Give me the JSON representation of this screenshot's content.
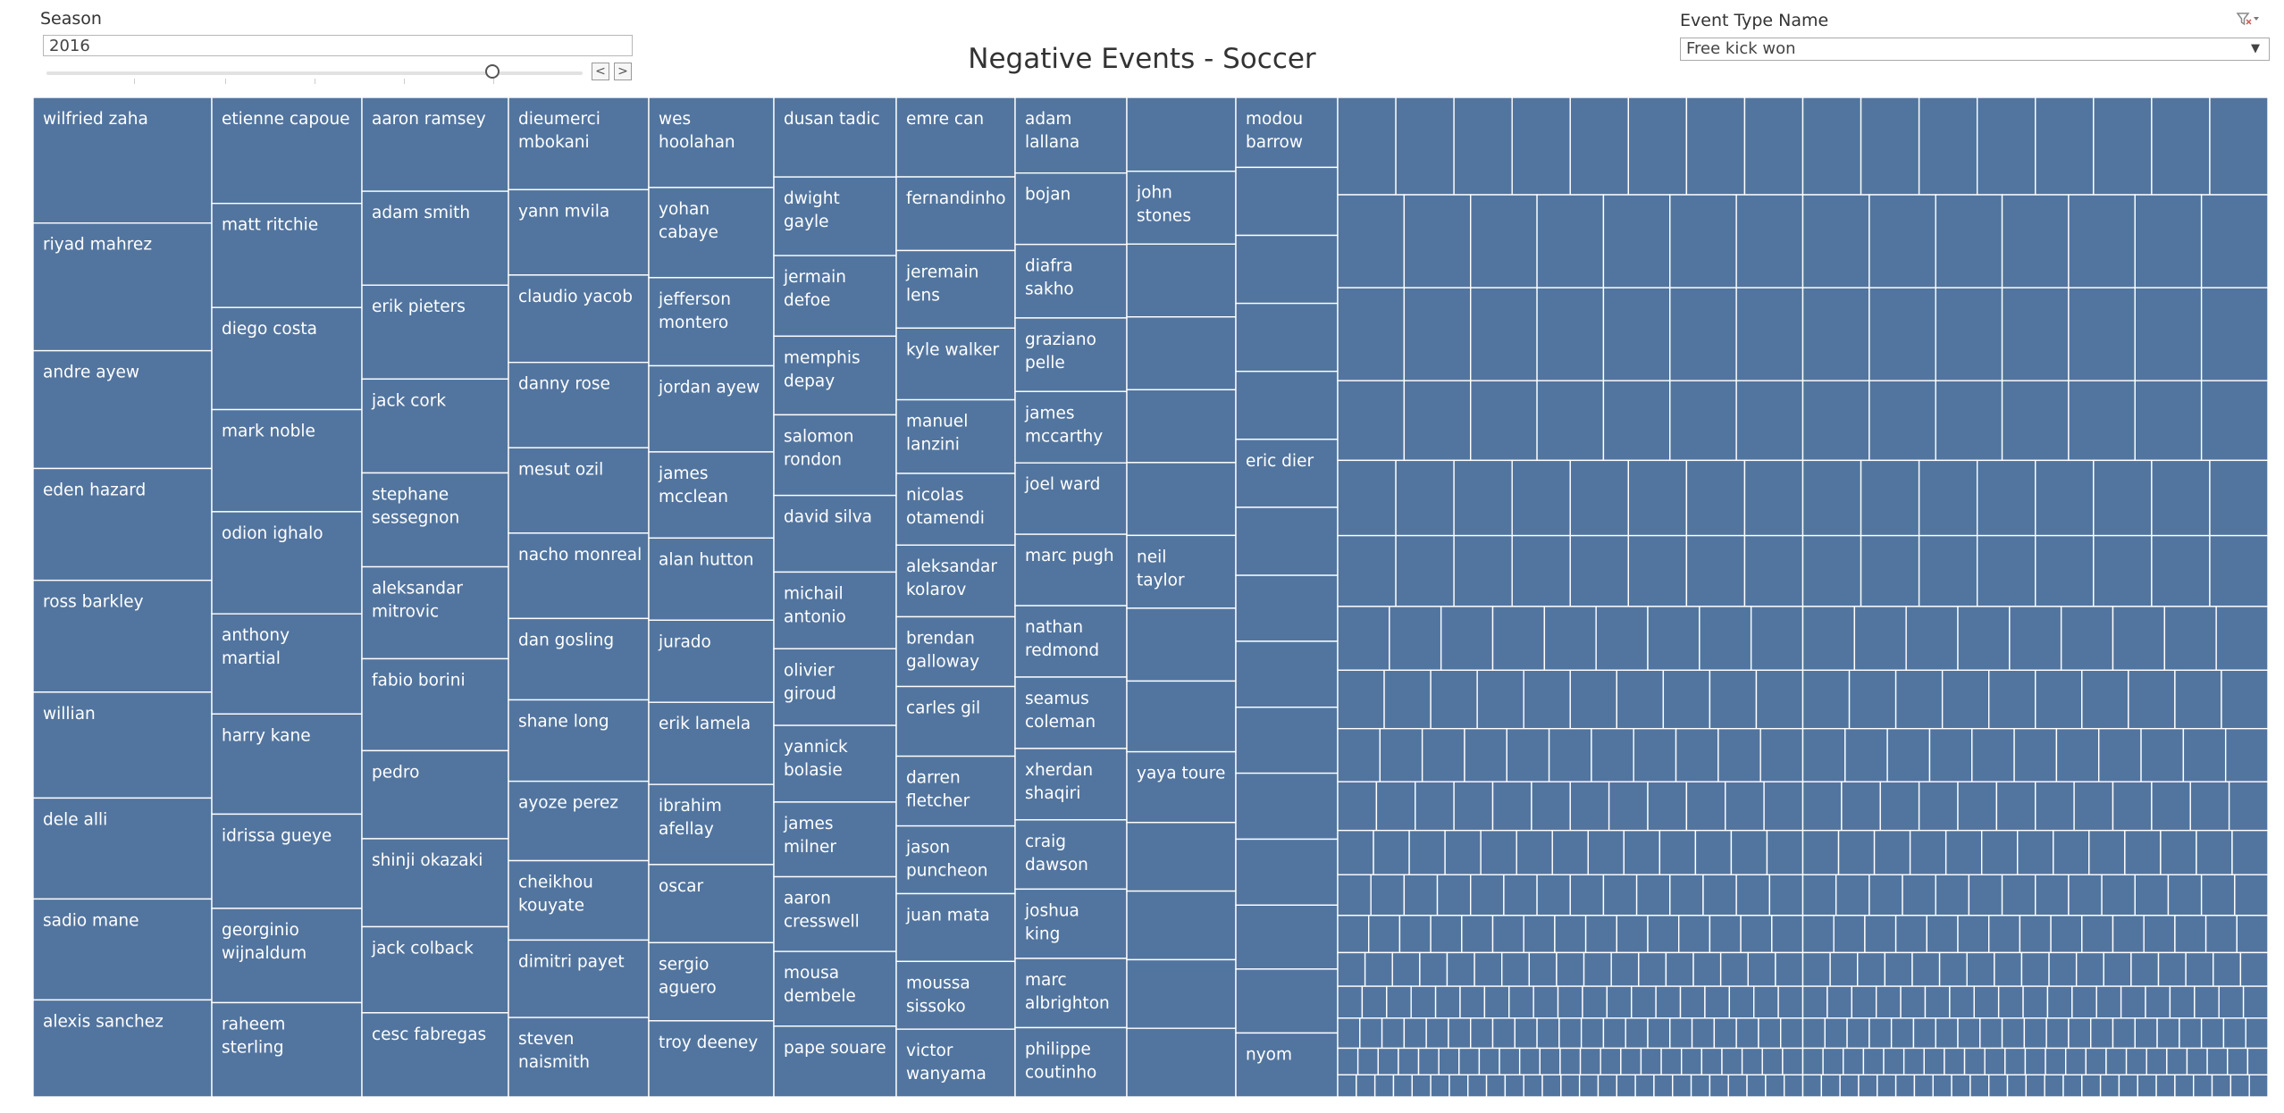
{
  "filters": {
    "season_label": "Season",
    "season_value": "2016",
    "prev_label": "<",
    "next_label": ">",
    "event_type_label": "Event Type Name",
    "event_type_value": "Free kick won",
    "filter_icon": "clear-filter-icon",
    "dropdown_icon": "chevron-down-icon"
  },
  "chart_data": {
    "type": "treemap",
    "title": "Negative Events - Soccer",
    "color": "#52759f",
    "columns": [
      {
        "items": [
          [
            "wilfried zaha",
            12.7
          ],
          [
            "riyad mahrez",
            12.9
          ],
          [
            "andre ayew",
            11.9
          ],
          [
            "eden hazard",
            11.3
          ],
          [
            "ross barkley",
            11.3
          ],
          [
            "willian",
            10.7
          ],
          [
            "dele alli",
            10.2
          ],
          [
            "sadio mane",
            10.2
          ],
          [
            "alexis sanchez",
            9.8
          ]
        ]
      },
      {
        "items": [
          [
            "etienne capoue",
            10.8
          ],
          [
            "matt ritchie",
            10.6
          ],
          [
            "diego costa",
            10.4
          ],
          [
            "mark noble",
            10.4
          ],
          [
            "odion ighalo",
            10.4
          ],
          [
            "anthony martial",
            10.2
          ],
          [
            "harry kane",
            10.2
          ],
          [
            "idrissa gueye",
            9.6
          ],
          [
            "georginio wijnaldum",
            9.6
          ],
          [
            "raheem sterling",
            9.6
          ]
        ]
      },
      {
        "items": [
          [
            "aaron ramsey",
            9.6
          ],
          [
            "adam smith",
            9.6
          ],
          [
            "erik pieters",
            9.6
          ],
          [
            "jack cork",
            9.6
          ],
          [
            "stephane sessegnon",
            9.6
          ],
          [
            "aleksandar mitrovic",
            9.4
          ],
          [
            "fabio borini",
            9.4
          ],
          [
            "pedro",
            9.0
          ],
          [
            "shinji okazaki",
            9.0
          ],
          [
            "jack colback",
            8.8
          ],
          [
            "cesc fabregas",
            8.6
          ]
        ]
      },
      {
        "items": [
          [
            "dieumerci mbokani",
            9.3
          ],
          [
            "yann mvila",
            8.6
          ],
          [
            "claudio yacob",
            8.8
          ],
          [
            "danny rose",
            8.6
          ],
          [
            "mesut ozil",
            8.6
          ],
          [
            "nacho monreal",
            8.6
          ],
          [
            "dan gosling",
            8.2
          ],
          [
            "shane long",
            8.2
          ],
          [
            "ayoze perez",
            8.0
          ],
          [
            "cheikhou kouyate",
            8.0
          ],
          [
            "dimitri payet",
            7.8
          ],
          [
            "steven naismith",
            8.0
          ]
        ]
      },
      {
        "items": [
          [
            "wes hoolahan",
            9.0
          ],
          [
            "yohan cabaye",
            9.0
          ],
          [
            "jefferson montero",
            8.8
          ],
          [
            "jordan ayew",
            8.6
          ],
          [
            "james mcclean",
            8.6
          ],
          [
            "alan hutton",
            8.2
          ],
          [
            "jurado",
            8.2
          ],
          [
            "erik lamela",
            8.2
          ],
          [
            "ibrahim afellay",
            8.0
          ],
          [
            "oscar",
            7.8
          ],
          [
            "sergio aguero",
            7.8
          ],
          [
            "troy deeney",
            7.6
          ]
        ]
      },
      {
        "items": [
          [
            "dusan tadic",
            8.1
          ],
          [
            "dwight gayle",
            8.0
          ],
          [
            "jermain defoe",
            8.2
          ],
          [
            "memphis depay",
            8.0
          ],
          [
            "salomon rondon",
            8.2
          ],
          [
            "david silva",
            7.8
          ],
          [
            "michail antonio",
            7.8
          ],
          [
            "olivier giroud",
            7.8
          ],
          [
            "yannick bolasie",
            7.8
          ],
          [
            "james milner",
            7.6
          ],
          [
            "aaron cresswell",
            7.6
          ],
          [
            "mousa dembele",
            7.6
          ],
          [
            "pape souare",
            7.2
          ]
        ]
      },
      {
        "items": [
          [
            "emre can",
            8.1
          ],
          [
            "fernandinho",
            7.5
          ],
          [
            "jeremain lens",
            7.9
          ],
          [
            "kyle walker",
            7.3
          ],
          [
            "manuel lanzini",
            7.5
          ],
          [
            "nicolas otamendi",
            7.3
          ],
          [
            "aleksandar kolarov",
            7.3
          ],
          [
            "brendan galloway",
            7.1
          ],
          [
            "carles gil",
            7.1
          ],
          [
            "darren fletcher",
            7.1
          ],
          [
            "jason puncheon",
            6.9
          ],
          [
            "juan mata",
            6.9
          ],
          [
            "moussa sissoko",
            6.9
          ],
          [
            "victor wanyama",
            6.9
          ]
        ]
      },
      {
        "items": [
          [
            "adam lallana",
            7.1
          ],
          [
            "bojan",
            6.7
          ],
          [
            "diafra sakho",
            6.9
          ],
          [
            "graziano pelle",
            6.9
          ],
          [
            "james mccarthy",
            6.7
          ],
          [
            "joel ward",
            6.7
          ],
          [
            "marc pugh",
            6.7
          ],
          [
            "nathan redmond",
            6.7
          ],
          [
            "seamus coleman",
            6.7
          ],
          [
            "xherdan shaqiri",
            6.7
          ],
          [
            "craig dawson",
            6.5
          ],
          [
            "joshua king",
            6.5
          ],
          [
            "marc albrighton",
            6.5
          ],
          [
            "philippe coutinho",
            6.5
          ]
        ]
      },
      {
        "items": [
          [
            "",
            7.0
          ],
          [
            "john stones",
            6.9
          ],
          [
            "",
            6.9
          ],
          [
            "",
            6.9
          ],
          [
            "",
            6.9
          ],
          [
            "",
            6.9
          ],
          [
            "neil taylor",
            6.9
          ],
          [
            "",
            6.9
          ],
          [
            "",
            6.7
          ],
          [
            "yaya toure",
            6.7
          ],
          [
            "",
            6.5
          ],
          [
            "",
            6.5
          ],
          [
            "",
            6.5
          ],
          [
            "",
            6.5
          ]
        ]
      },
      {
        "items": [
          [
            "modou barrow",
            6.9
          ],
          [
            "",
            6.7
          ],
          [
            "",
            6.7
          ],
          [
            "",
            6.7
          ],
          [
            "",
            6.7
          ],
          [
            "eric dier",
            6.7
          ],
          [
            "",
            6.7
          ],
          [
            "",
            6.5
          ],
          [
            "",
            6.5
          ],
          [
            "",
            6.5
          ],
          [
            "",
            6.5
          ],
          [
            "",
            6.5
          ],
          [
            "",
            6.3
          ],
          [
            "",
            6.3
          ],
          [
            "nyom",
            6.3
          ]
        ]
      }
    ]
  }
}
